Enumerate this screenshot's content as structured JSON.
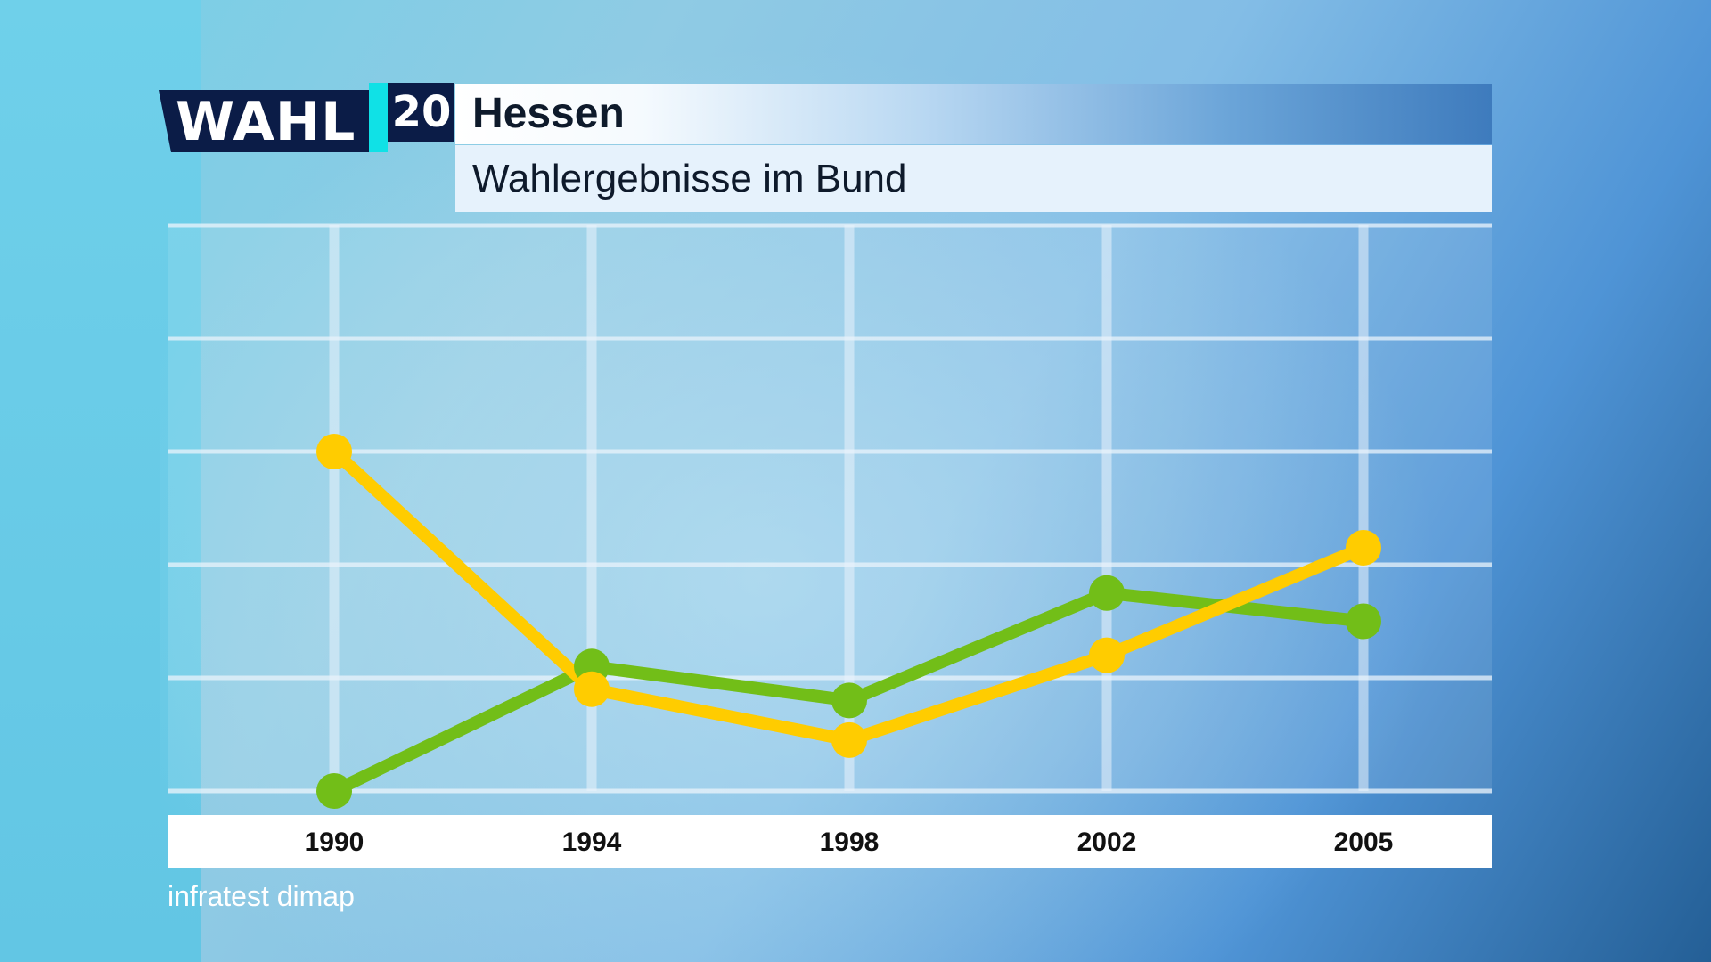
{
  "header": {
    "logo_text": "WAHL",
    "logo_number": "20",
    "title": "Hessen",
    "subtitle": "Wahlergebnisse im Bund"
  },
  "source": "infratest dimap",
  "colors": {
    "series_green": "#72be18",
    "series_yellow": "#ffcc00",
    "gridline": "#e9f3fb"
  },
  "chart_data": {
    "type": "line",
    "title": "Wahlergebnisse im Bund",
    "xlabel": "",
    "ylabel": "",
    "x": [
      "1990",
      "1994",
      "1998",
      "2002",
      "2005"
    ],
    "ylim": [
      0,
      5
    ],
    "grid": true,
    "legend": "none",
    "series": [
      {
        "color": "#72be18",
        "values": [
          0.0,
          1.1,
          0.8,
          1.75,
          1.5
        ]
      },
      {
        "color": "#ffcc00",
        "values": [
          3.0,
          0.9,
          0.45,
          1.2,
          2.15
        ]
      }
    ]
  }
}
